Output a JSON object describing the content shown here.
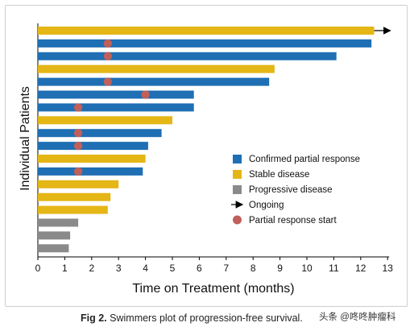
{
  "chart_data": {
    "type": "swimmer",
    "xlabel": "Time on Treatment (months)",
    "ylabel": "Individual Patients",
    "xlim": [
      0,
      13
    ],
    "xticks": [
      "0",
      "1",
      "2",
      "3",
      "4",
      "5",
      "6",
      "7",
      "8",
      "9",
      "10",
      "11",
      "12",
      "13"
    ],
    "grid": false,
    "legend_position": "right",
    "colors": {
      "partial_response": "#1f6fb4",
      "stable_disease": "#e4b616",
      "progressive_disease": "#8a8a8a",
      "pr_start_marker": "#c0605a"
    },
    "legend": [
      {
        "key": "partial_response",
        "label": "Confirmed partial response",
        "kind": "box"
      },
      {
        "key": "stable_disease",
        "label": "Stable disease",
        "kind": "box"
      },
      {
        "key": "progressive_disease",
        "label": "Progressive disease",
        "kind": "box"
      },
      {
        "key": "ongoing",
        "label": "Ongoing",
        "kind": "arrow"
      },
      {
        "key": "pr_start",
        "label": "Partial response start",
        "kind": "dot"
      }
    ],
    "patients": [
      {
        "status": "stable_disease",
        "duration": 12.5,
        "pr_start": null,
        "ongoing": true
      },
      {
        "status": "partial_response",
        "duration": 12.4,
        "pr_start": 2.6,
        "ongoing": false
      },
      {
        "status": "partial_response",
        "duration": 11.1,
        "pr_start": 2.6,
        "ongoing": false
      },
      {
        "status": "stable_disease",
        "duration": 8.8,
        "pr_start": null,
        "ongoing": false
      },
      {
        "status": "partial_response",
        "duration": 8.6,
        "pr_start": 2.6,
        "ongoing": false
      },
      {
        "status": "partial_response",
        "duration": 5.8,
        "pr_start": 4.0,
        "ongoing": false
      },
      {
        "status": "partial_response",
        "duration": 5.8,
        "pr_start": 1.5,
        "ongoing": false
      },
      {
        "status": "stable_disease",
        "duration": 5.0,
        "pr_start": null,
        "ongoing": false
      },
      {
        "status": "partial_response",
        "duration": 4.6,
        "pr_start": 1.5,
        "ongoing": false
      },
      {
        "status": "partial_response",
        "duration": 4.1,
        "pr_start": 1.5,
        "ongoing": false
      },
      {
        "status": "stable_disease",
        "duration": 4.0,
        "pr_start": null,
        "ongoing": false
      },
      {
        "status": "partial_response",
        "duration": 3.9,
        "pr_start": 1.5,
        "ongoing": false
      },
      {
        "status": "stable_disease",
        "duration": 3.0,
        "pr_start": null,
        "ongoing": false
      },
      {
        "status": "stable_disease",
        "duration": 2.7,
        "pr_start": null,
        "ongoing": false
      },
      {
        "status": "stable_disease",
        "duration": 2.6,
        "pr_start": null,
        "ongoing": false
      },
      {
        "status": "progressive_disease",
        "duration": 1.5,
        "pr_start": null,
        "ongoing": false
      },
      {
        "status": "progressive_disease",
        "duration": 1.2,
        "pr_start": null,
        "ongoing": false
      },
      {
        "status": "progressive_disease",
        "duration": 1.15,
        "pr_start": null,
        "ongoing": false
      }
    ]
  },
  "caption": {
    "figure_label": "Fig 2.",
    "text": "Swimmers plot of progression-free survival."
  },
  "watermark": "头条 @咚咚肿瘤科"
}
